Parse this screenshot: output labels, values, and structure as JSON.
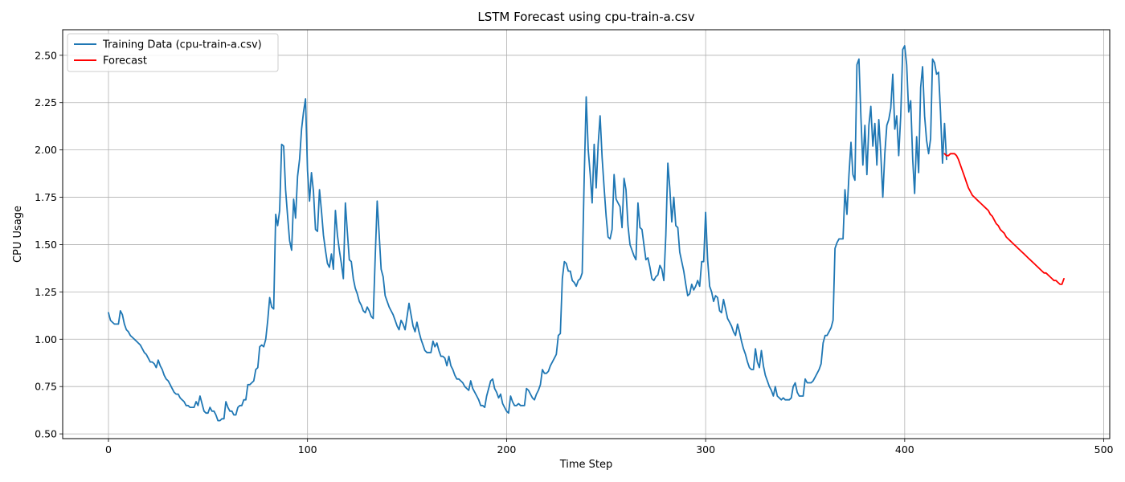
{
  "chart_data": {
    "type": "line",
    "title": "LSTM Forecast using cpu-train-a.csv",
    "xlabel": "Time Step",
    "ylabel": "CPU Usage",
    "xlim": [
      -23,
      503
    ],
    "ylim": [
      0.475,
      2.635
    ],
    "x_ticks": [
      0,
      100,
      200,
      300,
      400,
      500
    ],
    "y_ticks": [
      0.5,
      0.75,
      1.0,
      1.25,
      1.5,
      1.75,
      2.0,
      2.25,
      2.5
    ],
    "y_tick_labels": [
      "0.50",
      "0.75",
      "1.00",
      "1.25",
      "1.50",
      "1.75",
      "2.00",
      "2.25",
      "2.50"
    ],
    "grid": true,
    "legend_position": "top-left",
    "series": [
      {
        "name": "Training Data (cpu-train-a.csv)",
        "color": "#1f77b4",
        "x_start": 0,
        "values": [
          1.14,
          1.1,
          1.09,
          1.08,
          1.08,
          1.08,
          1.15,
          1.13,
          1.08,
          1.05,
          1.04,
          1.02,
          1.01,
          1.0,
          0.99,
          0.98,
          0.97,
          0.95,
          0.93,
          0.92,
          0.9,
          0.88,
          0.88,
          0.87,
          0.85,
          0.89,
          0.86,
          0.84,
          0.81,
          0.79,
          0.78,
          0.76,
          0.74,
          0.72,
          0.71,
          0.71,
          0.69,
          0.68,
          0.67,
          0.65,
          0.65,
          0.64,
          0.64,
          0.64,
          0.67,
          0.65,
          0.7,
          0.66,
          0.62,
          0.61,
          0.61,
          0.64,
          0.62,
          0.62,
          0.6,
          0.57,
          0.57,
          0.58,
          0.58,
          0.67,
          0.64,
          0.62,
          0.62,
          0.6,
          0.6,
          0.64,
          0.65,
          0.65,
          0.68,
          0.68,
          0.76,
          0.76,
          0.77,
          0.78,
          0.84,
          0.85,
          0.96,
          0.97,
          0.96,
          1.0,
          1.1,
          1.22,
          1.17,
          1.16,
          1.66,
          1.6,
          1.68,
          2.03,
          2.02,
          1.79,
          1.65,
          1.52,
          1.47,
          1.74,
          1.64,
          1.86,
          1.95,
          2.11,
          2.2,
          2.27,
          1.89,
          1.73,
          1.88,
          1.78,
          1.58,
          1.57,
          1.79,
          1.68,
          1.55,
          1.47,
          1.4,
          1.38,
          1.45,
          1.37,
          1.68,
          1.55,
          1.47,
          1.4,
          1.32,
          1.72,
          1.57,
          1.42,
          1.41,
          1.32,
          1.27,
          1.24,
          1.2,
          1.18,
          1.15,
          1.14,
          1.17,
          1.15,
          1.12,
          1.11,
          1.43,
          1.73,
          1.55,
          1.37,
          1.33,
          1.23,
          1.2,
          1.17,
          1.15,
          1.13,
          1.1,
          1.07,
          1.05,
          1.1,
          1.08,
          1.05,
          1.12,
          1.19,
          1.13,
          1.07,
          1.04,
          1.09,
          1.04,
          1.0,
          0.97,
          0.94,
          0.93,
          0.93,
          0.93,
          0.99,
          0.96,
          0.98,
          0.94,
          0.91,
          0.91,
          0.9,
          0.86,
          0.91,
          0.86,
          0.84,
          0.81,
          0.79,
          0.79,
          0.78,
          0.77,
          0.75,
          0.74,
          0.73,
          0.78,
          0.74,
          0.72,
          0.7,
          0.68,
          0.65,
          0.65,
          0.64,
          0.7,
          0.74,
          0.78,
          0.79,
          0.74,
          0.72,
          0.69,
          0.71,
          0.66,
          0.64,
          0.62,
          0.61,
          0.7,
          0.67,
          0.65,
          0.65,
          0.66,
          0.65,
          0.65,
          0.65,
          0.74,
          0.73,
          0.71,
          0.69,
          0.68,
          0.71,
          0.73,
          0.76,
          0.84,
          0.82,
          0.82,
          0.83,
          0.86,
          0.88,
          0.9,
          0.92,
          1.02,
          1.03,
          1.32,
          1.41,
          1.4,
          1.36,
          1.36,
          1.31,
          1.3,
          1.28,
          1.31,
          1.32,
          1.35,
          1.85,
          2.28,
          2.0,
          1.87,
          1.72,
          2.03,
          1.8,
          2.03,
          2.18,
          1.96,
          1.8,
          1.65,
          1.54,
          1.53,
          1.58,
          1.87,
          1.74,
          1.72,
          1.7,
          1.59,
          1.85,
          1.79,
          1.6,
          1.5,
          1.47,
          1.44,
          1.42,
          1.72,
          1.59,
          1.58,
          1.5,
          1.42,
          1.43,
          1.38,
          1.32,
          1.31,
          1.33,
          1.34,
          1.39,
          1.37,
          1.31,
          1.55,
          1.93,
          1.8,
          1.62,
          1.75,
          1.6,
          1.59,
          1.46,
          1.41,
          1.36,
          1.29,
          1.23,
          1.24,
          1.29,
          1.26,
          1.28,
          1.31,
          1.28,
          1.41,
          1.41,
          1.67,
          1.42,
          1.28,
          1.25,
          1.2,
          1.23,
          1.22,
          1.15,
          1.14,
          1.21,
          1.16,
          1.11,
          1.09,
          1.07,
          1.04,
          1.02,
          1.08,
          1.04,
          0.99,
          0.95,
          0.92,
          0.88,
          0.85,
          0.84,
          0.84,
          0.95,
          0.88,
          0.85,
          0.94,
          0.86,
          0.81,
          0.78,
          0.75,
          0.73,
          0.7,
          0.75,
          0.7,
          0.69,
          0.68,
          0.69,
          0.68,
          0.68,
          0.68,
          0.69,
          0.75,
          0.77,
          0.72,
          0.7,
          0.7,
          0.7,
          0.79,
          0.77,
          0.77,
          0.77,
          0.78,
          0.8,
          0.82,
          0.84,
          0.87,
          0.98,
          1.02,
          1.02,
          1.04,
          1.06,
          1.1,
          1.48,
          1.51,
          1.53,
          1.53,
          1.53,
          1.79,
          1.66,
          1.87,
          2.04,
          1.87,
          1.84,
          2.45,
          2.48,
          2.17,
          1.92,
          2.13,
          1.87,
          2.13,
          2.23,
          2.02,
          2.14,
          1.92,
          2.16,
          1.98,
          1.75,
          1.98,
          2.13,
          2.16,
          2.22,
          2.4,
          2.11,
          2.18,
          1.97,
          2.18,
          2.53,
          2.55,
          2.45,
          2.2,
          2.26,
          1.95,
          1.77,
          2.07,
          1.88,
          2.33,
          2.44,
          2.18,
          2.05,
          1.98,
          2.06,
          2.48,
          2.46,
          2.4,
          2.41,
          2.2,
          1.93,
          2.14,
          1.95
        ]
      },
      {
        "name": "Forecast",
        "color": "#ff0000",
        "x_start": 420,
        "values": [
          1.98,
          1.97,
          1.97,
          1.98,
          1.98,
          1.98,
          1.97,
          1.95,
          1.92,
          1.89,
          1.86,
          1.83,
          1.8,
          1.78,
          1.76,
          1.75,
          1.74,
          1.73,
          1.72,
          1.71,
          1.7,
          1.69,
          1.68,
          1.66,
          1.65,
          1.63,
          1.61,
          1.6,
          1.58,
          1.57,
          1.56,
          1.54,
          1.53,
          1.52,
          1.51,
          1.5,
          1.49,
          1.48,
          1.47,
          1.46,
          1.45,
          1.44,
          1.43,
          1.42,
          1.41,
          1.4,
          1.39,
          1.38,
          1.37,
          1.36,
          1.35,
          1.35,
          1.34,
          1.33,
          1.32,
          1.31,
          1.31,
          1.3,
          1.29,
          1.29,
          1.32
        ]
      }
    ]
  }
}
